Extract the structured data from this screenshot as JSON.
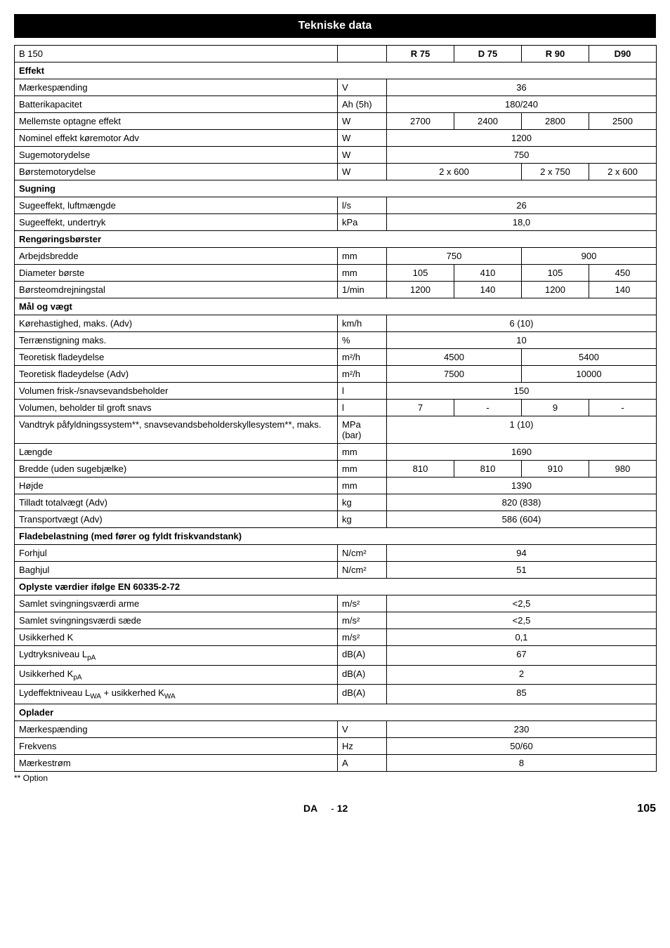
{
  "title": "Tekniske data",
  "columns": {
    "model": "B 150",
    "variants": [
      "R 75",
      "D 75",
      "R 90",
      "D90"
    ]
  },
  "sections": [
    {
      "header": "Effekt",
      "rows": [
        {
          "label": "Mærkespænding",
          "unit": "V",
          "span4": "36"
        },
        {
          "label": "Batterikapacitet",
          "unit": "Ah (5h)",
          "span4": "180/240"
        },
        {
          "label": "Mellemste optagne effekt",
          "unit": "W",
          "v": [
            "2700",
            "2400",
            "2800",
            "2500"
          ]
        },
        {
          "label": "Nominel effekt køremotor Adv",
          "unit": "W",
          "span4": "1200"
        },
        {
          "label": "Sugemotorydelse",
          "unit": "W",
          "span4": "750"
        },
        {
          "label": "Børstemotorydelse",
          "unit": "W",
          "span2a": "2 x 600",
          "v3": "2 x 750",
          "v4": "2 x 600"
        }
      ]
    },
    {
      "header": "Sugning",
      "rows": [
        {
          "label": "Sugeeffekt, luftmængde",
          "unit": "l/s",
          "span4": "26"
        },
        {
          "label": "Sugeeffekt, undertryk",
          "unit": "kPa",
          "span4": "18,0"
        }
      ]
    },
    {
      "header": "Rengøringsbørster",
      "rows": [
        {
          "label": "Arbejdsbredde",
          "unit": "mm",
          "span2a": "750",
          "span2b": "900"
        },
        {
          "label": "Diameter børste",
          "unit": "mm",
          "v": [
            "105",
            "410",
            "105",
            "450"
          ]
        },
        {
          "label": "Børsteomdrejningstal",
          "unit": "1/min",
          "v": [
            "1200",
            "140",
            "1200",
            "140"
          ]
        }
      ]
    },
    {
      "header": "Mål og vægt",
      "rows": [
        {
          "label": "Kørehastighed, maks. (Adv)",
          "unit": "km/h",
          "span4": "6 (10)"
        },
        {
          "label": "Terrænstigning maks.",
          "unit": "%",
          "span4": "10"
        },
        {
          "label": "Teoretisk fladeydelse",
          "unit": "m²/h",
          "span2a": "4500",
          "span2b": "5400"
        },
        {
          "label": "Teoretisk fladeydelse (Adv)",
          "unit": "m²/h",
          "span2a": "7500",
          "span2b": "10000"
        },
        {
          "label": "Volumen frisk-/snavsevandsbeholder",
          "unit": "l",
          "span4": "150"
        },
        {
          "label": "Volumen, beholder til groft snavs",
          "unit": "l",
          "v": [
            "7",
            "-",
            "9",
            "-"
          ]
        },
        {
          "label": "Vandtryk påfyldningssystem**, snavsevandsbeholderskyllesystem**, maks.",
          "unit": "MPa (bar)",
          "span4": "1 (10)"
        },
        {
          "label": "Længde",
          "unit": "mm",
          "span4": "1690"
        },
        {
          "label": "Bredde (uden sugebjælke)",
          "unit": "mm",
          "v": [
            "810",
            "810",
            "910",
            "980"
          ]
        },
        {
          "label": "Højde",
          "unit": "mm",
          "span4": "1390"
        },
        {
          "label": "Tilladt totalvægt (Adv)",
          "unit": "kg",
          "span4": "820 (838)"
        },
        {
          "label": "Transportvægt (Adv)",
          "unit": "kg",
          "span4": "586 (604)"
        }
      ]
    },
    {
      "header": "Fladebelastning (med fører og fyldt friskvandstank)",
      "rows": [
        {
          "label": "Forhjul",
          "unit": "N/cm²",
          "span4": "94"
        },
        {
          "label": "Baghjul",
          "unit": "N/cm²",
          "span4": "51"
        }
      ]
    },
    {
      "header": "Oplyste værdier ifølge EN 60335-2-72",
      "rows": [
        {
          "label": "Samlet svingningsværdi arme",
          "unit": "m/s²",
          "span4": "<2,5"
        },
        {
          "label": "Samlet svingningsværdi sæde",
          "unit": "m/s²",
          "span4": "<2,5"
        },
        {
          "label": "Usikkerhed K",
          "unit": "m/s²",
          "span4": "0,1"
        },
        {
          "label_html": "Lydtryksniveau L<sub>pA</sub>",
          "unit": "dB(A)",
          "span4": "67"
        },
        {
          "label_html": "Usikkerhed K<sub>pA</sub>",
          "unit": "dB(A)",
          "span4": "2"
        },
        {
          "label_html": "Lydeffektniveau L<sub>WA</sub> + usikkerhed K<sub>WA</sub>",
          "unit": "dB(A)",
          "span4": "85"
        }
      ]
    },
    {
      "header": "Oplader",
      "rows": [
        {
          "label": "Mærkespænding",
          "unit": "V",
          "span4": "230"
        },
        {
          "label": "Frekvens",
          "unit": "Hz",
          "span4": "50/60"
        },
        {
          "label": "Mærkestrøm",
          "unit": "A",
          "span4": "8"
        }
      ]
    }
  ],
  "footnote": "** Option",
  "footer": {
    "lang": "DA",
    "dash": "-",
    "page": "12",
    "abs_page": "105"
  }
}
